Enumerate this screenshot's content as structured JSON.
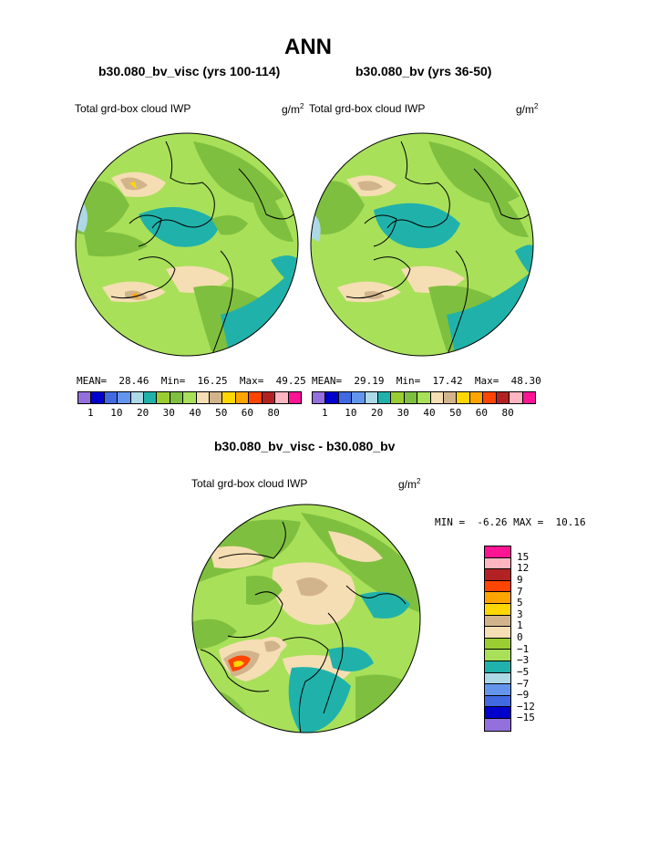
{
  "title": "ANN",
  "top_left": {
    "case_label": "b30.080_bv_visc (yrs 100-114)",
    "variable": "Total grd-box cloud IWP",
    "units": "g/m",
    "units_sup": "2",
    "stats": {
      "mean_label": "MEAN=",
      "mean": "28.46",
      "min_label": "Min=",
      "min": "16.25",
      "max_label": "Max=",
      "max": "49.25"
    }
  },
  "top_right": {
    "case_label": "b30.080_bv (yrs 36-50)",
    "variable": "Total grd-box cloud IWP",
    "units": "g/m",
    "units_sup": "2",
    "stats": {
      "mean_label": "MEAN=",
      "mean": "29.19",
      "min_label": "Min=",
      "min": "17.42",
      "max_label": "Max=",
      "max": "48.30"
    }
  },
  "horizontal_colorbar": {
    "colors": [
      "#9370db",
      "#0000cd",
      "#4169e1",
      "#6495ed",
      "#add8e6",
      "#20b2aa",
      "#9acd32",
      "#7fbf3f",
      "#a8e05a",
      "#f5deb3",
      "#d2b48c",
      "#ffd700",
      "#ffa500",
      "#ff4500",
      "#b22222",
      "#ffb6c1",
      "#ff1493"
    ],
    "ticks": [
      "1",
      "10",
      "20",
      "30",
      "40",
      "50",
      "60",
      "80"
    ]
  },
  "bottom": {
    "case_label": "b30.080_bv_visc - b30.080_bv",
    "variable": "Total grd-box cloud IWP",
    "units": "g/m",
    "units_sup": "2",
    "stats": {
      "min_label": "MIN =",
      "min": "-6.26",
      "max_label": "MAX =",
      "max": "10.16"
    }
  },
  "vertical_colorbar": {
    "colors": [
      "#ff1493",
      "#ffb6c1",
      "#b22222",
      "#ff4500",
      "#ffa500",
      "#ffd700",
      "#d2b48c",
      "#f5deb3",
      "#9acd32",
      "#a8e05a",
      "#20b2aa",
      "#add8e6",
      "#6495ed",
      "#4169e1",
      "#0000cd",
      "#9370db"
    ],
    "ticks": [
      "15",
      "12",
      "9",
      "7",
      "5",
      "3",
      "1",
      "0",
      "−1",
      "−3",
      "−5",
      "−7",
      "−9",
      "−12",
      "−15"
    ]
  },
  "colors": {
    "green_light": "#a8e05a",
    "green_dark": "#7fbf3f",
    "teal": "#20b2aa",
    "wheat": "#f5deb3",
    "tan": "#d2b48c",
    "coast": "#000000"
  }
}
